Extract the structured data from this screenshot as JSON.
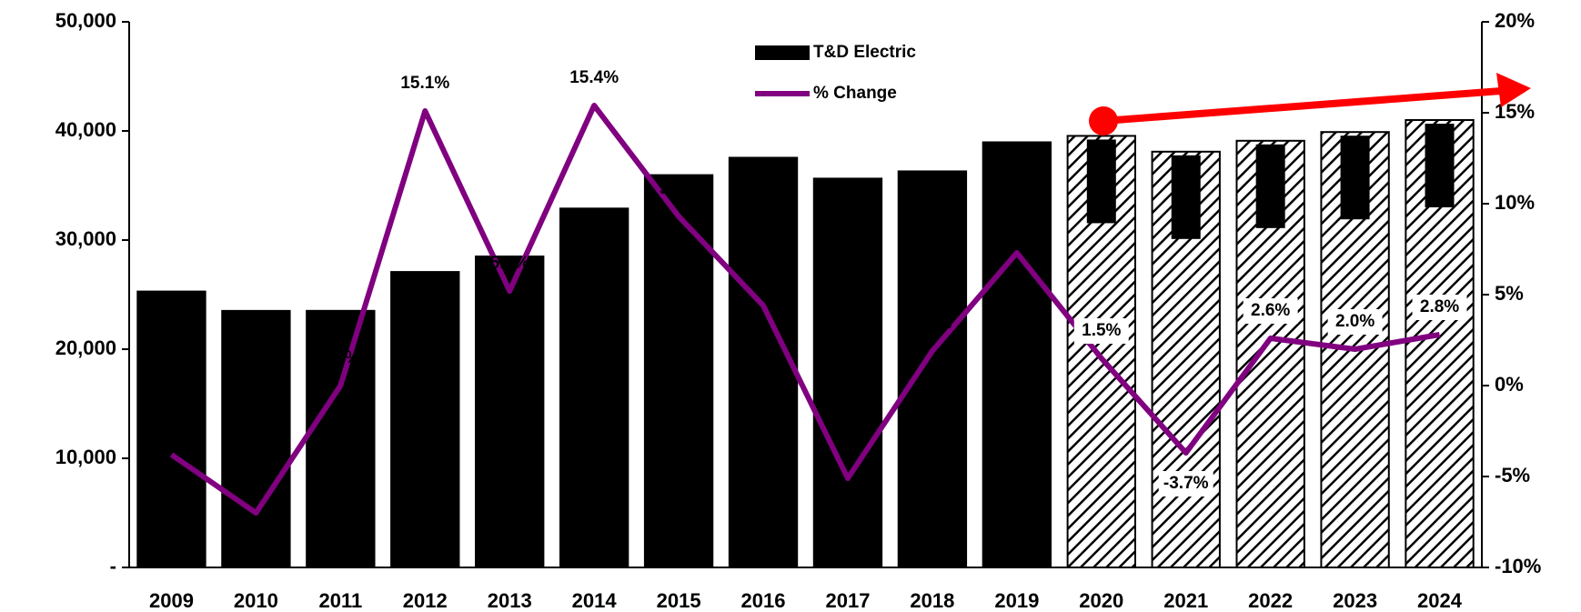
{
  "chart_data": {
    "type": "bar",
    "categories": [
      "2009",
      "2010",
      "2011",
      "2012",
      "2013",
      "2014",
      "2015",
      "2016",
      "2017",
      "2018",
      "2019",
      "2020",
      "2021",
      "2022",
      "2023",
      "2024"
    ],
    "series": [
      {
        "name": "T&D Electric",
        "type": "bar",
        "color": "#000000",
        "values": [
          25284,
          23511,
          23515,
          27076,
          28497,
          32890,
          35952,
          37545,
          35632,
          36297,
          38960,
          39547,
          38100,
          39100,
          39900,
          41000
        ],
        "value_labels": [
          "25,284",
          "23,511",
          "23,515",
          "27,076",
          "28,497",
          "32,890",
          "35,952",
          "37,545",
          "35,632",
          "36,297",
          "38,960",
          "39,547",
          "38,100",
          "39,100",
          "39,900",
          "41,000"
        ],
        "hatched": [
          false,
          false,
          false,
          false,
          false,
          false,
          false,
          false,
          false,
          false,
          false,
          true,
          true,
          true,
          true,
          true
        ]
      },
      {
        "name": "% Change",
        "type": "line",
        "axis": "y2",
        "color": "#800080",
        "values": [
          -3.8,
          -7.0,
          0.0,
          15.1,
          5.2,
          15.4,
          9.3,
          4.4,
          -5.1,
          1.9,
          7.3,
          1.5,
          -3.7,
          2.6,
          2.0,
          2.8
        ],
        "value_labels": [
          "-3.8%",
          "-7.0%",
          "0.0%",
          "15.1%",
          "5.2%",
          "15.4%",
          "9.3%",
          "4.4%",
          "-5.1%",
          "1.9%",
          "7.3%",
          "1.5%",
          "-3.7%",
          "2.6%",
          "2.0%",
          "2.8%"
        ]
      }
    ],
    "ylim": [
      0,
      50000
    ],
    "yticks": [
      {
        "value": 0,
        "label": "-"
      },
      {
        "value": 10000,
        "label": "10,000"
      },
      {
        "value": 20000,
        "label": "20,000"
      },
      {
        "value": 30000,
        "label": "30,000"
      },
      {
        "value": 40000,
        "label": "40,000"
      },
      {
        "value": 50000,
        "label": "50,000"
      }
    ],
    "y2lim": [
      -10,
      20
    ],
    "y2ticks": [
      {
        "value": -10,
        "label": "-10%"
      },
      {
        "value": -5,
        "label": "-5%"
      },
      {
        "value": 0,
        "label": "0%"
      },
      {
        "value": 5,
        "label": "5%"
      },
      {
        "value": 10,
        "label": "10%"
      },
      {
        "value": 15,
        "label": "15%"
      },
      {
        "value": 20,
        "label": "20%"
      }
    ],
    "legend": "top",
    "grid": false
  }
}
